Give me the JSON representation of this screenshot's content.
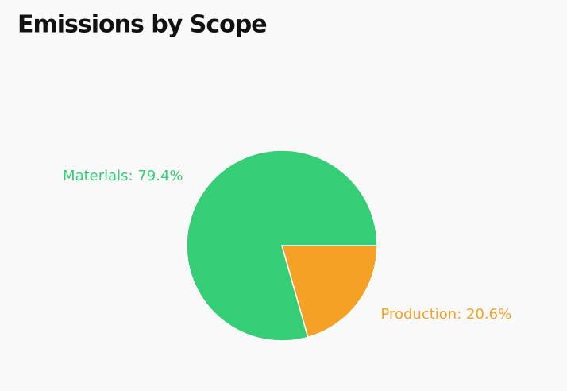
{
  "chart_data": {
    "type": "pie",
    "title": "Emissions by Scope",
    "values": [
      79.4,
      20.6
    ],
    "value_labels": [
      "Materials: 79.4%",
      "Production: 20.6%"
    ],
    "colors": [
      "#35cd76",
      "#f4a126"
    ]
  }
}
